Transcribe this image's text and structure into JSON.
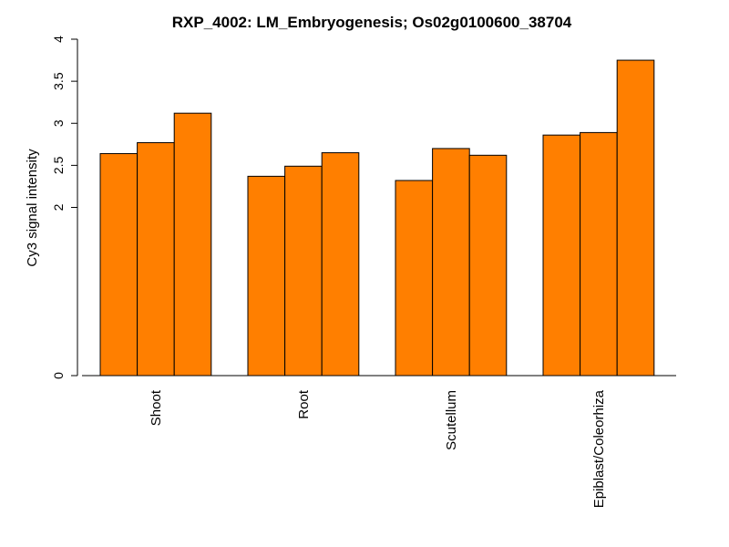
{
  "chart_data": {
    "type": "bar",
    "title": "RXP_4002: LM_Embryogenesis; Os02g0100600_38704",
    "xlabel": "",
    "ylabel": "Cy3 signal intensity",
    "ylim": [
      0,
      4
    ],
    "yticks": [
      "0",
      "2",
      "2.5",
      "3",
      "3.5",
      "4"
    ],
    "categories": [
      "Shoot",
      "Root",
      "Scutellum",
      "Epiblast/Coleorhiza"
    ],
    "bar_color": "#ff7f00",
    "bar_border_color": "#000000",
    "grid": false,
    "legend": "none",
    "values": [
      [
        2.64,
        2.77,
        3.12
      ],
      [
        2.37,
        2.49,
        2.65
      ],
      [
        2.32,
        2.7,
        2.62
      ],
      [
        2.86,
        2.89,
        3.75
      ]
    ]
  }
}
